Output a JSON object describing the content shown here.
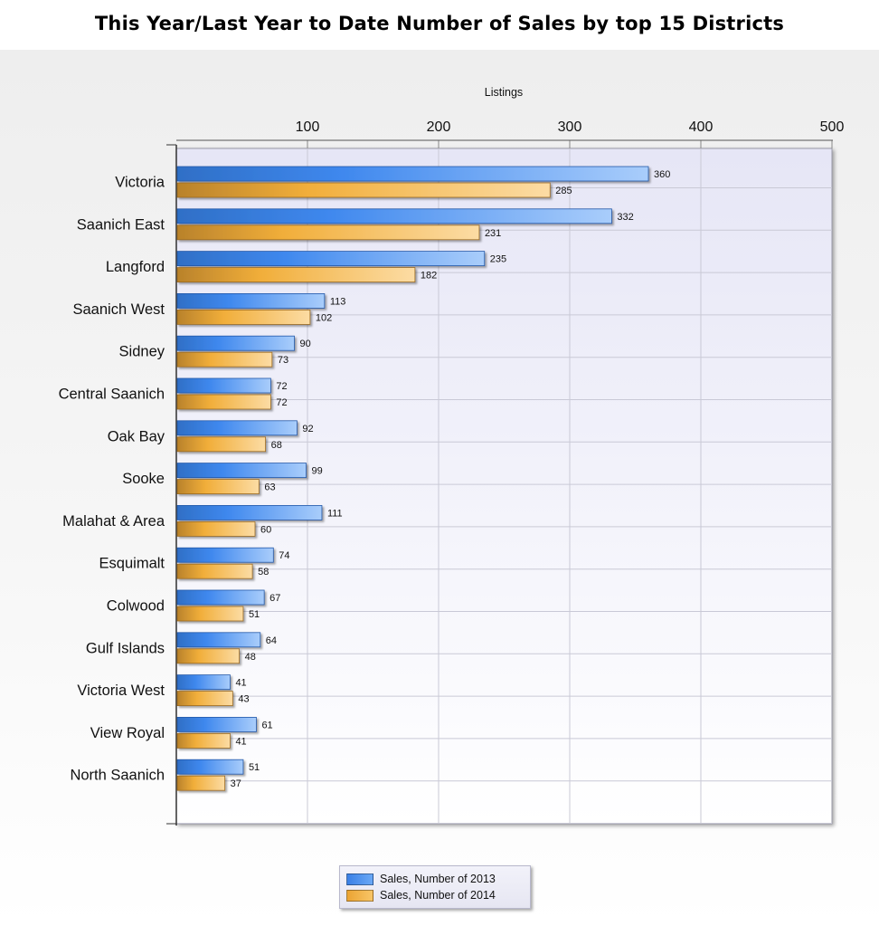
{
  "page": {
    "title": "This Year/Last Year to Date Number of Sales by top 15 Districts"
  },
  "chart_data": {
    "type": "bar",
    "orientation": "horizontal",
    "title": "This Year/Last Year to Date Number of Sales by top 15 Districts",
    "xlabel": "Listings",
    "ylabel": "",
    "xlim": [
      0,
      500
    ],
    "x_ticks": [
      "100",
      "200",
      "300",
      "400",
      "500"
    ],
    "grid": true,
    "legend_position": "bottom",
    "categories": [
      "Victoria",
      "Saanich East",
      "Langford",
      "Saanich West",
      "Sidney",
      "Central Saanich",
      "Oak Bay",
      "Sooke",
      "Malahat & Area",
      "Esquimalt",
      "Colwood",
      "Gulf Islands",
      "Victoria West",
      "View Royal",
      "North Saanich"
    ],
    "series": [
      {
        "name": "Sales, Number of 2013",
        "color": "#3e87ec",
        "values": [
          360,
          332,
          235,
          113,
          90,
          72,
          92,
          99,
          111,
          74,
          67,
          64,
          41,
          61,
          51
        ]
      },
      {
        "name": "Sales, Number of 2014",
        "color": "#f3b13c",
        "values": [
          285,
          231,
          182,
          102,
          73,
          72,
          68,
          63,
          60,
          58,
          51,
          48,
          43,
          41,
          37
        ]
      }
    ]
  }
}
